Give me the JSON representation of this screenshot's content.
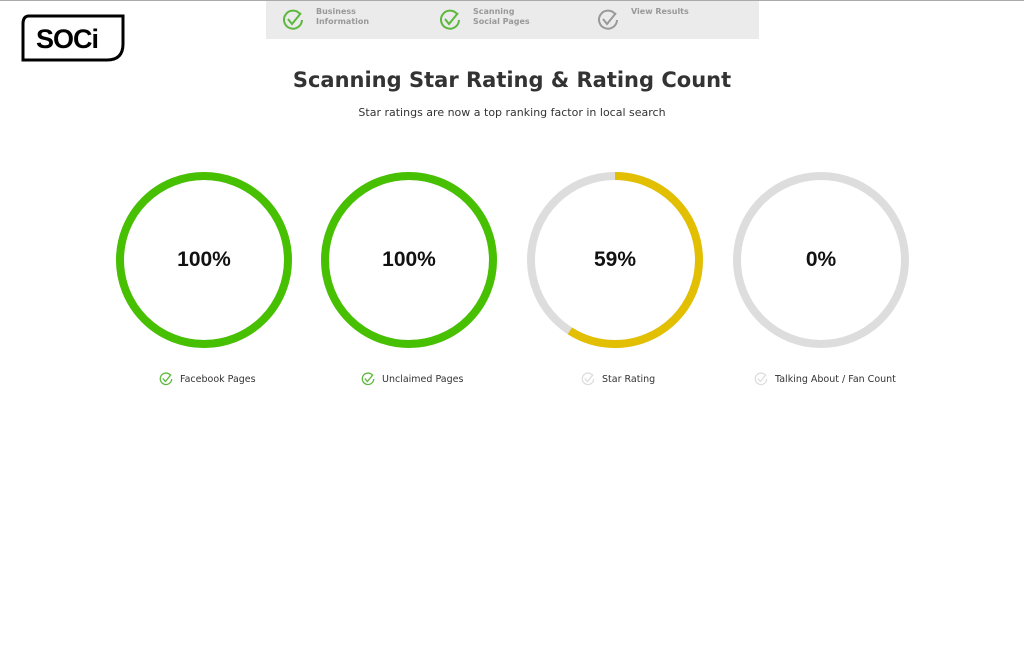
{
  "logo": {
    "text": "SOCi"
  },
  "steps": [
    {
      "label": "Business Information",
      "state": "done",
      "color": "#5cb83c"
    },
    {
      "label": "Scanning Social Pages",
      "state": "done",
      "color": "#5cb83c"
    },
    {
      "label": "View Results",
      "state": "pending",
      "color": "#999999"
    }
  ],
  "header": {
    "title": "Scanning Star Rating & Rating Count",
    "subtitle": "Star ratings are now a top ranking factor in local search"
  },
  "gauges": [
    {
      "value": 100,
      "display": "100%",
      "label": "Facebook Pages",
      "color": "#46c000",
      "done": true
    },
    {
      "value": 100,
      "display": "100%",
      "label": "Unclaimed Pages",
      "color": "#46c000",
      "done": true
    },
    {
      "value": 59,
      "display": "59%",
      "label": "Star Rating",
      "color": "#e2bf00",
      "done": false
    },
    {
      "value": 0,
      "display": "0%",
      "label": "Talking About / Fan Count",
      "color": "#e2bf00",
      "done": false
    }
  ],
  "colors": {
    "track": "#dddddd",
    "check_done": "#5cb83c",
    "check_pending": "#dddddd"
  }
}
